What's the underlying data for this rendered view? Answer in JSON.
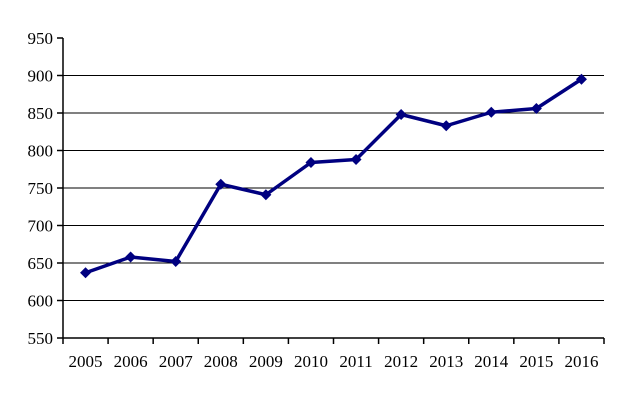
{
  "chart_data": {
    "type": "line",
    "categories": [
      "2005",
      "2006",
      "2007",
      "2008",
      "2009",
      "2010",
      "2011",
      "2012",
      "2013",
      "2014",
      "2015",
      "2016"
    ],
    "values": [
      637,
      658,
      652,
      755,
      741,
      784,
      788,
      848,
      833,
      851,
      856,
      895
    ],
    "title": "",
    "xlabel": "",
    "ylabel": "",
    "ylim": [
      550,
      950
    ],
    "ytick_step": 50,
    "ytick_labels": [
      "550",
      "600",
      "650",
      "700",
      "750",
      "800",
      "850",
      "900",
      "950"
    ],
    "grid": true,
    "gridline_values": [
      600,
      650,
      700,
      750,
      800,
      850,
      900
    ],
    "legend_position": "none",
    "line_color": "#000080",
    "marker": "diamond",
    "axis_color": "#000000",
    "gridline_color": "#000000",
    "background_color": "#ffffff"
  }
}
